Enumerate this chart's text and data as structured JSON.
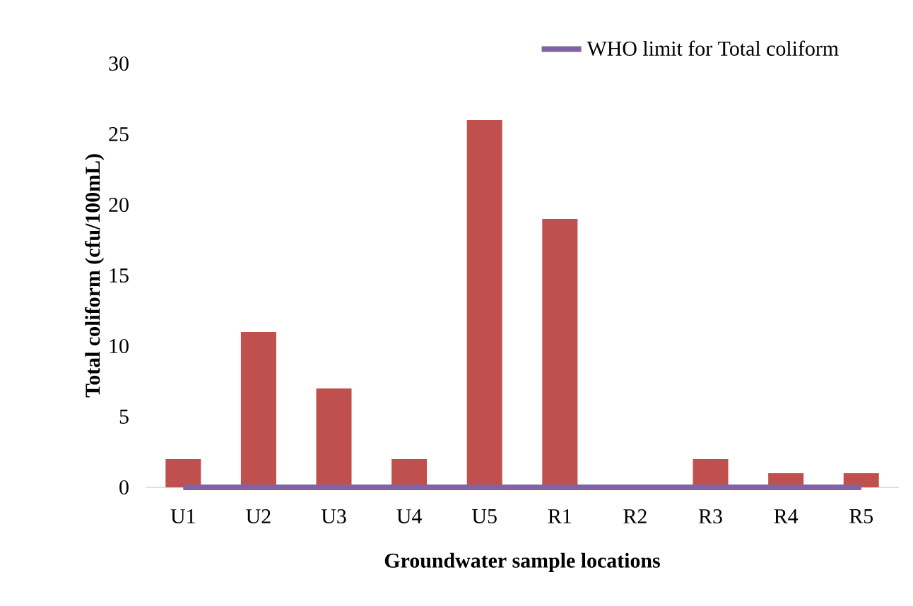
{
  "chart_data": {
    "type": "bar",
    "xlabel": "Groundwater sample locations",
    "ylabel": "Total coliform (cfu/100mL)",
    "categories": [
      "U1",
      "U2",
      "U3",
      "U4",
      "U5",
      "R1",
      "R2",
      "R3",
      "R4",
      "R5"
    ],
    "series": [
      {
        "color": "#c0504d",
        "values": [
          2,
          11,
          7,
          2,
          26,
          19,
          0,
          2,
          1,
          1
        ]
      },
      {
        "type": "line",
        "name": "WHO limit for Total coliform",
        "color": "#8064a2",
        "values": [
          0,
          0,
          0,
          0,
          0,
          0,
          0,
          0,
          0,
          0
        ]
      }
    ],
    "ylim": [
      0,
      30
    ],
    "yticks": [
      0,
      5,
      10,
      15,
      20,
      25,
      30
    ],
    "legend": "top right",
    "grid": false
  }
}
